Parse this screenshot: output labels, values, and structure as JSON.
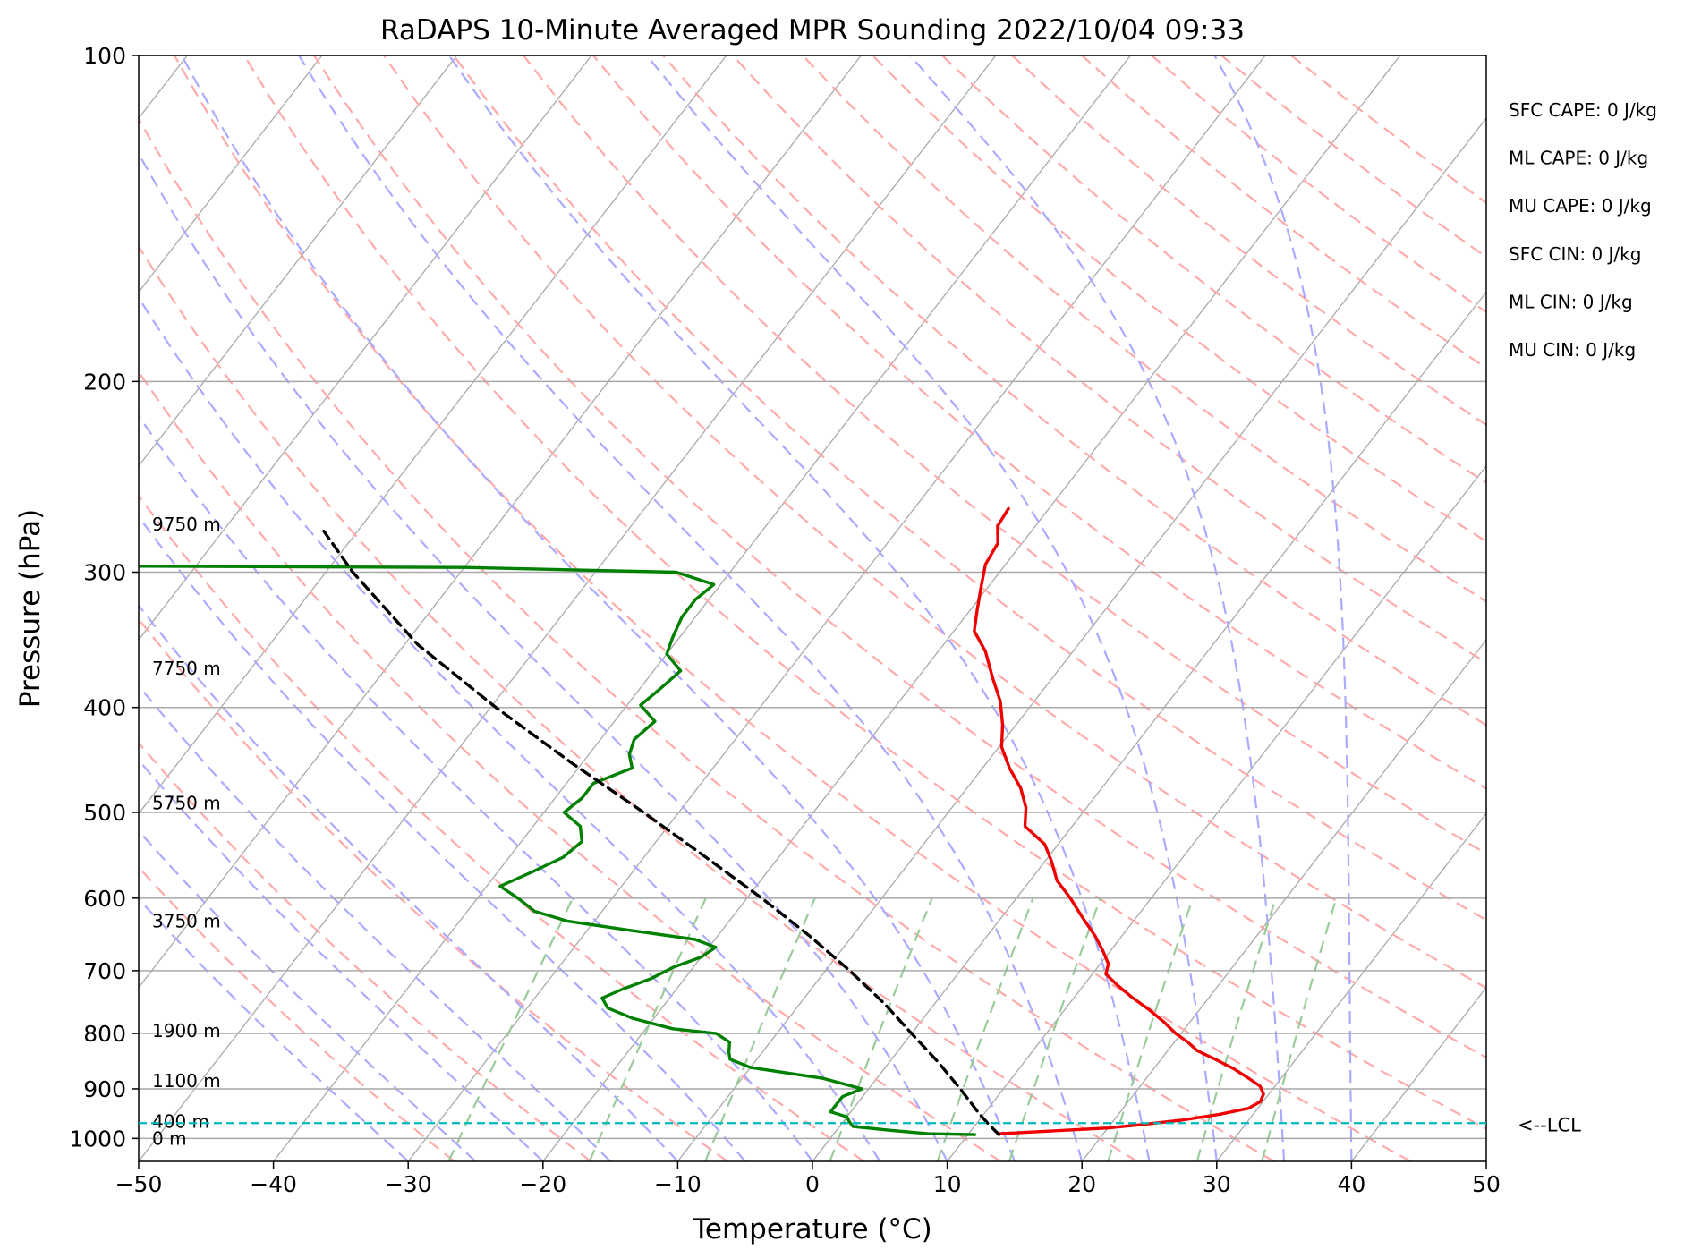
{
  "chart_data": {
    "type": "line",
    "subtype": "skew-t log-p diagram",
    "title": "RaDAPS 10-Minute Averaged MPR Sounding 2022/10/04 09:33",
    "xlabel": "Temperature (°C)",
    "ylabel": "Pressure (hPa)",
    "x_axis": {
      "min": -50,
      "max": 50,
      "ticks": [
        -50,
        -40,
        -30,
        -20,
        -10,
        0,
        10,
        20,
        30,
        40,
        50
      ]
    },
    "y_axis": {
      "scale": "log",
      "min": 100,
      "max": 1050,
      "ticks": [
        100,
        200,
        300,
        400,
        500,
        600,
        700,
        800,
        900,
        1000
      ]
    },
    "grid": true,
    "background_lines": {
      "isotherms_color": "#a9a9a9",
      "dry_adiabats_color": "#ffaaaa",
      "moist_adiabats_color": "#aaaaff",
      "mixing_ratio_color": "#99cc99"
    },
    "series": [
      {
        "name": "Temperature",
        "color": "#ee0000",
        "points": [
          {
            "p": 990,
            "t": 12.3
          },
          {
            "p": 985,
            "t": 15.5
          },
          {
            "p": 978,
            "t": 20.0
          },
          {
            "p": 972,
            "t": 22.0
          },
          {
            "p": 962,
            "t": 25.0
          },
          {
            "p": 950,
            "t": 27.5
          },
          {
            "p": 938,
            "t": 29.3
          },
          {
            "p": 925,
            "t": 29.8
          },
          {
            "p": 910,
            "t": 29.6
          },
          {
            "p": 895,
            "t": 28.9
          },
          {
            "p": 880,
            "t": 27.6
          },
          {
            "p": 863,
            "t": 26.0
          },
          {
            "p": 845,
            "t": 24.0
          },
          {
            "p": 830,
            "t": 22.2
          },
          {
            "p": 815,
            "t": 21.0
          },
          {
            "p": 800,
            "t": 19.6
          },
          {
            "p": 780,
            "t": 18.0
          },
          {
            "p": 760,
            "t": 16.2
          },
          {
            "p": 740,
            "t": 14.2
          },
          {
            "p": 722,
            "t": 12.5
          },
          {
            "p": 705,
            "t": 11.0
          },
          {
            "p": 690,
            "t": 10.6
          },
          {
            "p": 672,
            "t": 9.5
          },
          {
            "p": 650,
            "t": 8.0
          },
          {
            "p": 625,
            "t": 6.0
          },
          {
            "p": 600,
            "t": 4.0
          },
          {
            "p": 578,
            "t": 2.0
          },
          {
            "p": 555,
            "t": 0.5
          },
          {
            "p": 535,
            "t": -1.0
          },
          {
            "p": 515,
            "t": -3.5
          },
          {
            "p": 495,
            "t": -4.5
          },
          {
            "p": 475,
            "t": -6.0
          },
          {
            "p": 455,
            "t": -8.0
          },
          {
            "p": 435,
            "t": -9.8
          },
          {
            "p": 415,
            "t": -11.0
          },
          {
            "p": 395,
            "t": -12.5
          },
          {
            "p": 375,
            "t": -14.5
          },
          {
            "p": 355,
            "t": -16.5
          },
          {
            "p": 340,
            "t": -18.5
          },
          {
            "p": 325,
            "t": -19.5
          },
          {
            "p": 310,
            "t": -20.5
          },
          {
            "p": 295,
            "t": -21.5
          },
          {
            "p": 282,
            "t": -21.8
          },
          {
            "p": 272,
            "t": -22.8
          },
          {
            "p": 262,
            "t": -23.0
          }
        ]
      },
      {
        "name": "Dewpoint",
        "color": "#008000",
        "points": [
          {
            "p": 992,
            "t": 10.5
          },
          {
            "p": 990,
            "t": 7.0
          },
          {
            "p": 983,
            "t": 4.0
          },
          {
            "p": 975,
            "t": 1.0
          },
          {
            "p": 966,
            "t": 0.5
          },
          {
            "p": 955,
            "t": 0.0
          },
          {
            "p": 945,
            "t": -1.5
          },
          {
            "p": 930,
            "t": -1.5
          },
          {
            "p": 915,
            "t": -1.5
          },
          {
            "p": 900,
            "t": -0.5
          },
          {
            "p": 880,
            "t": -4.0
          },
          {
            "p": 860,
            "t": -10.0
          },
          {
            "p": 845,
            "t": -12.0
          },
          {
            "p": 832,
            "t": -12.5
          },
          {
            "p": 815,
            "t": -13.0
          },
          {
            "p": 800,
            "t": -14.5
          },
          {
            "p": 792,
            "t": -18.0
          },
          {
            "p": 775,
            "t": -21.5
          },
          {
            "p": 758,
            "t": -24.0
          },
          {
            "p": 742,
            "t": -25.0
          },
          {
            "p": 728,
            "t": -24.0
          },
          {
            "p": 712,
            "t": -22.5
          },
          {
            "p": 695,
            "t": -21.5
          },
          {
            "p": 680,
            "t": -20.0
          },
          {
            "p": 666,
            "t": -19.5
          },
          {
            "p": 655,
            "t": -21.5
          },
          {
            "p": 642,
            "t": -27.0
          },
          {
            "p": 630,
            "t": -32.0
          },
          {
            "p": 617,
            "t": -35.0
          },
          {
            "p": 600,
            "t": -37.0
          },
          {
            "p": 585,
            "t": -39.0
          },
          {
            "p": 568,
            "t": -37.5
          },
          {
            "p": 550,
            "t": -36.0
          },
          {
            "p": 532,
            "t": -35.5
          },
          {
            "p": 515,
            "t": -36.5
          },
          {
            "p": 500,
            "t": -38.5
          },
          {
            "p": 485,
            "t": -38.0
          },
          {
            "p": 470,
            "t": -38.0
          },
          {
            "p": 455,
            "t": -36.0
          },
          {
            "p": 442,
            "t": -37.0
          },
          {
            "p": 428,
            "t": -37.5
          },
          {
            "p": 412,
            "t": -37.0
          },
          {
            "p": 398,
            "t": -39.0
          },
          {
            "p": 385,
            "t": -38.5
          },
          {
            "p": 370,
            "t": -38.0
          },
          {
            "p": 357,
            "t": -40.0
          },
          {
            "p": 345,
            "t": -40.5
          },
          {
            "p": 330,
            "t": -41.0
          },
          {
            "p": 318,
            "t": -41.0
          },
          {
            "p": 308,
            "t": -40.5
          },
          {
            "p": 300,
            "t": -44.0
          },
          {
            "p": 297,
            "t": -60.0
          },
          {
            "p": 296,
            "t": -90.0
          }
        ]
      },
      {
        "name": "Parcel",
        "color": "#000000",
        "dashed": true,
        "points": [
          {
            "p": 992,
            "t": 12.3
          },
          {
            "p": 968,
            "t": 10.8
          },
          {
            "p": 950,
            "t": 9.7
          },
          {
            "p": 900,
            "t": 6.8
          },
          {
            "p": 850,
            "t": 3.6
          },
          {
            "p": 800,
            "t": 0.0
          },
          {
            "p": 750,
            "t": -3.8
          },
          {
            "p": 700,
            "t": -8.2
          },
          {
            "p": 650,
            "t": -13.2
          },
          {
            "p": 600,
            "t": -18.9
          },
          {
            "p": 550,
            "t": -25.4
          },
          {
            "p": 500,
            "t": -32.6
          },
          {
            "p": 450,
            "t": -40.8
          },
          {
            "p": 400,
            "t": -49.6
          },
          {
            "p": 350,
            "t": -59.0
          },
          {
            "p": 300,
            "t": -68.0
          },
          {
            "p": 275,
            "t": -72.5
          }
        ]
      }
    ],
    "lcl": {
      "p": 968,
      "label": "<--LCL",
      "color": "#00bbbb"
    },
    "height_labels": [
      {
        "p": 1000,
        "label": "0 m"
      },
      {
        "p": 965,
        "label": "400 m"
      },
      {
        "p": 885,
        "label": "1100 m"
      },
      {
        "p": 795,
        "label": "1900 m"
      },
      {
        "p": 630,
        "label": "3750 m"
      },
      {
        "p": 490,
        "label": "5750 m"
      },
      {
        "p": 368,
        "label": "7750 m"
      },
      {
        "p": 271,
        "label": "9750 m"
      }
    ],
    "indices": [
      {
        "label": "SFC CAPE: 0 J/kg"
      },
      {
        "label": "ML CAPE: 0 J/kg"
      },
      {
        "label": "MU CAPE: 0 J/kg"
      },
      {
        "label": "SFC CIN: 0 J/kg"
      },
      {
        "label": "ML CIN: 0 J/kg"
      },
      {
        "label": "MU CIN: 0 J/kg"
      }
    ]
  }
}
